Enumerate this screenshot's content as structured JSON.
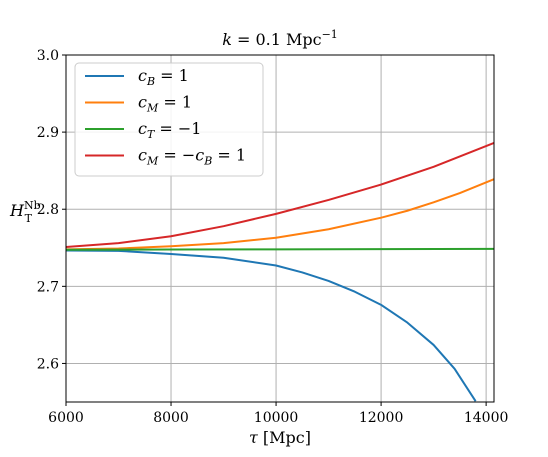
{
  "chart_data": {
    "type": "line",
    "title": {
      "left": "k",
      "mid": " = 0.1 Mpc",
      "sup": "−1"
    },
    "xlabel": {
      "sym": "τ",
      "unit": " [Mpc]"
    },
    "ylabel": {
      "main": "H",
      "sup": "Nb",
      "sub": "T"
    },
    "xlim": [
      6000,
      14150
    ],
    "ylim": [
      2.55,
      3.0
    ],
    "xticks": [
      6000,
      8000,
      10000,
      12000,
      14000
    ],
    "xtick_labels": [
      "6000",
      "8000",
      "10000",
      "12000",
      "14000"
    ],
    "yticks": [
      2.6,
      2.7,
      2.8,
      2.9,
      3.0
    ],
    "ytick_labels": [
      "2.6",
      "2.7",
      "2.8",
      "2.9",
      "3.0"
    ],
    "grid": true,
    "legend_position": "top-left",
    "series": [
      {
        "name": "c_B = 1",
        "label_parts": {
          "var": "c",
          "sub": "B",
          "rest": " = 1"
        },
        "color": "#1f77b4",
        "x": [
          6000,
          7000,
          8000,
          9000,
          10000,
          10500,
          11000,
          11500,
          12000,
          12500,
          13000,
          13400,
          13800
        ],
        "y": [
          2.7465,
          2.746,
          2.742,
          2.737,
          2.727,
          2.718,
          2.707,
          2.693,
          2.676,
          2.653,
          2.624,
          2.593,
          2.551
        ]
      },
      {
        "name": "c_M = 1",
        "label_parts": {
          "var": "c",
          "sub": "M",
          "rest": " = 1"
        },
        "color": "#ff7f0e",
        "x": [
          6000,
          7000,
          8000,
          9000,
          10000,
          11000,
          12000,
          12500,
          13000,
          13500,
          14150
        ],
        "y": [
          2.748,
          2.749,
          2.752,
          2.756,
          2.763,
          2.774,
          2.789,
          2.798,
          2.809,
          2.821,
          2.839
        ]
      },
      {
        "name": "c_T = −1",
        "label_parts": {
          "var": "c",
          "sub": "T",
          "rest": " = −1"
        },
        "color": "#2ca02c",
        "x": [
          6000,
          8000,
          10000,
          12000,
          14150
        ],
        "y": [
          2.7475,
          2.7478,
          2.748,
          2.7482,
          2.7485
        ]
      },
      {
        "name": "c_M = −c_B = 1",
        "label_parts": {
          "var": "c",
          "sub": "M",
          "rest": " = −",
          "var2": "c",
          "sub2": "B",
          "rest2": " = 1"
        },
        "color": "#d62728",
        "x": [
          6000,
          7000,
          8000,
          9000,
          10000,
          11000,
          12000,
          13000,
          14150
        ],
        "y": [
          2.751,
          2.756,
          2.765,
          2.778,
          2.794,
          2.812,
          2.832,
          2.855,
          2.886
        ]
      }
    ]
  }
}
